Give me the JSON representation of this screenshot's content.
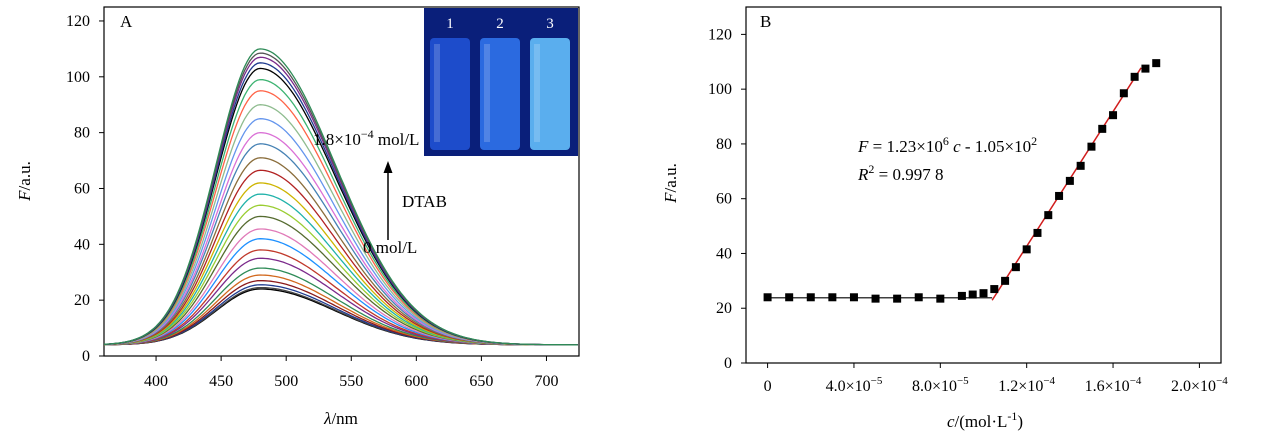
{
  "chart_data": [
    {
      "panel": "A",
      "type": "line",
      "xlabel_symbol": "λ",
      "xlabel_unit": "/nm",
      "ylabel_symbol": "F",
      "ylabel_unit": "/a.u.",
      "xlim": [
        360,
        725
      ],
      "ylim": [
        0,
        125
      ],
      "x_ticks": [
        400,
        450,
        500,
        550,
        600,
        650,
        700
      ],
      "y_ticks": [
        0,
        20,
        40,
        60,
        80,
        100,
        120
      ],
      "peak_wavelength": 480,
      "baseline_end": 4,
      "peak_intensities": [
        24,
        24.5,
        25.5,
        27,
        29,
        31.5,
        35,
        38,
        42,
        45.5,
        50,
        54,
        58,
        62,
        66.5,
        71,
        76,
        80,
        85,
        90,
        95,
        99,
        103,
        105,
        107,
        108.5,
        110
      ],
      "colors": [
        "#000000",
        "#444444",
        "#1f3b8f",
        "#8b1a1a",
        "#d2691e",
        "#2e8b57",
        "#7b2a8b",
        "#c0392b",
        "#1e90ff",
        "#e07ab8",
        "#556b2f",
        "#9acd32",
        "#20b2aa",
        "#cdb400",
        "#b22222",
        "#8a6d3b",
        "#4682b4",
        "#da70d6",
        "#6495ed",
        "#8fbc8f",
        "#ff6347",
        "#3cb371",
        "#000000",
        "#1f3b8f",
        "#7b2a8b",
        "#555555",
        "#2e8b57"
      ],
      "annotations": {
        "top_label_base": "1.8×10",
        "top_label_exp": "−4",
        "top_label_unit": " mol/L",
        "arrow_label": "DTAB",
        "bottom_label": "0 mol/L"
      },
      "inset": {
        "vial_labels": [
          "1",
          "2",
          "3"
        ],
        "vial_colors": [
          "#1f4fd0",
          "#2d6fe6",
          "#5fb6f4"
        ],
        "background": "#0a1f7a"
      }
    },
    {
      "panel": "B",
      "type": "scatter",
      "xlabel_symbol": "c",
      "xlabel_unit": "/(mol·L",
      "xlabel_exp": "-1",
      "xlabel_close": ")",
      "ylabel_symbol": "F",
      "ylabel_unit": "/a.u.",
      "xlim": [
        -1e-05,
        0.00021
      ],
      "ylim": [
        0,
        130
      ],
      "x_ticks": [
        {
          "value": 0,
          "base": "0",
          "exp": ""
        },
        {
          "value": 4e-05,
          "base": "4.0×10",
          "exp": "−5"
        },
        {
          "value": 8e-05,
          "base": "8.0×10",
          "exp": "−5"
        },
        {
          "value": 0.00012,
          "base": "1.2×10",
          "exp": "−4"
        },
        {
          "value": 0.00016,
          "base": "1.6×10",
          "exp": "−4"
        },
        {
          "value": 0.0002,
          "base": "2.0×10",
          "exp": "−4"
        }
      ],
      "y_ticks": [
        0,
        20,
        40,
        60,
        80,
        100,
        120
      ],
      "x": [
        0,
        1e-05,
        2e-05,
        3e-05,
        4e-05,
        5e-05,
        6e-05,
        7e-05,
        8e-05,
        9e-05,
        9.5e-05,
        0.0001,
        0.000105,
        0.00011,
        0.000115,
        0.00012,
        0.000125,
        0.00013,
        0.000135,
        0.00014,
        0.000145,
        0.00015,
        0.000155,
        0.00016,
        0.000165,
        0.00017,
        0.000175,
        0.00018
      ],
      "y": [
        24,
        24,
        24,
        24,
        24,
        23.5,
        23.5,
        24,
        23.5,
        24.5,
        25,
        25.5,
        27,
        30,
        35,
        41.5,
        47.5,
        54,
        61,
        66.5,
        72,
        79,
        85.5,
        90.5,
        98.5,
        104.5,
        107.5,
        109.5
      ],
      "fit_line": {
        "x0": 0,
        "x1": 0.000104,
        "y": 23.8
      },
      "regression": {
        "slope": 1230000,
        "intercept": -105,
        "x_start": 0.000104,
        "x_end": 0.000173
      },
      "annotations": {
        "equation_left": "F",
        "equation_mid": " = 1.23×10",
        "equation_exp1": "6",
        "equation_c": "c",
        "equation_right": " - 1.05×10",
        "equation_exp2": "2",
        "r2_R": "R",
        "r2_exp": "2",
        "r2_value": " = 0.997 8"
      }
    }
  ]
}
